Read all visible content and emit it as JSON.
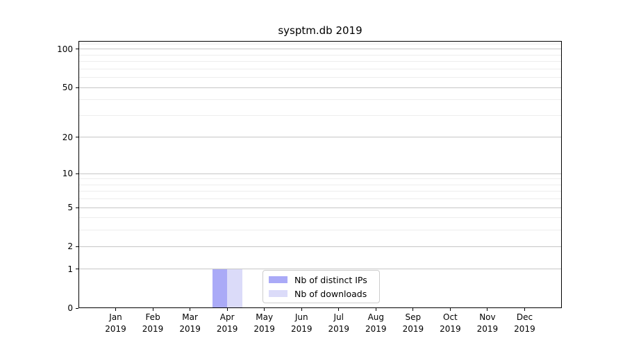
{
  "chart_data": {
    "type": "bar",
    "title": "sysptm.db 2019",
    "categories": [
      "Jan",
      "Feb",
      "Mar",
      "Apr",
      "May",
      "Jun",
      "Jul",
      "Aug",
      "Sep",
      "Oct",
      "Nov",
      "Dec"
    ],
    "category_year": "2019",
    "series": [
      {
        "name": "Nb of distinct IPs",
        "color": "#aaaaf7",
        "values": [
          0,
          0,
          0,
          1,
          0,
          0,
          0,
          0,
          0,
          0,
          0,
          0
        ]
      },
      {
        "name": "Nb of downloads",
        "color": "#dbdbf9",
        "values": [
          0,
          0,
          0,
          1,
          0,
          0,
          0,
          0,
          0,
          0,
          0,
          0
        ]
      }
    ],
    "yscale": "log1p",
    "ylim": [
      0,
      116
    ],
    "y_major_ticks": [
      0,
      1,
      2,
      5,
      10,
      20,
      50,
      100
    ],
    "y_minor_gridlines": [
      3,
      4,
      6,
      7,
      8,
      9,
      30,
      40,
      60,
      70,
      80,
      90,
      110
    ],
    "grid": "horizontal",
    "legend_position": "lower center",
    "colors": {
      "major_grid": "#c6c6c6",
      "minor_grid": "#ededed",
      "spine": "#000000",
      "background": "#ffffff",
      "text": "#000000"
    }
  }
}
